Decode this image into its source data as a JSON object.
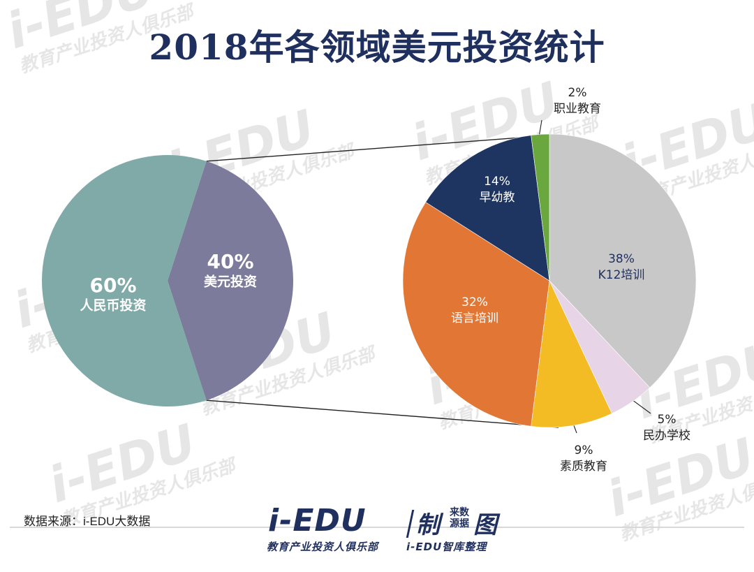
{
  "watermark": {
    "brand": "i-EDU",
    "tagline": "教育产业投资人俱乐部"
  },
  "colors": {
    "title": "#1f2f5e",
    "label_dark": "#1f2f5e",
    "label_light": "#ffffff",
    "connector": "#222222"
  },
  "chart_data": [
    {
      "type": "pie",
      "title": "2018年各领域美元投资统计",
      "name": "investment-currency-split",
      "slices": [
        {
          "label": "人民币投资",
          "pct": "60%",
          "value": 60,
          "color": "#7faaa7"
        },
        {
          "label": "美元投资",
          "pct": "40%",
          "value": 40,
          "color": "#7c7b9b"
        }
      ]
    },
    {
      "type": "pie",
      "name": "usd-investment-by-sector",
      "slices": [
        {
          "label": "K12培训",
          "pct": "38%",
          "value": 38,
          "color": "#c8c8c8"
        },
        {
          "label": "民办学校",
          "pct": "5%",
          "value": 5,
          "color": "#e7d4e6"
        },
        {
          "label": "素质教育",
          "pct": "9%",
          "value": 9,
          "color": "#f3bc25"
        },
        {
          "label": "语言培训",
          "pct": "32%",
          "value": 32,
          "color": "#e27735"
        },
        {
          "label": "早幼教",
          "pct": "14%",
          "value": 14,
          "color": "#1e3561"
        },
        {
          "label": "职业教育",
          "pct": "2%",
          "value": 2,
          "color": "#6aa83f"
        }
      ]
    }
  ],
  "footer": {
    "source": "数据来源：i-EDU大数据",
    "logo_main": "i-EDU",
    "logo_zhi": "制",
    "logo_src_top": "来数",
    "logo_src_bottom": "源据",
    "logo_tu": "图",
    "logo_sub1": "教育产业投资人俱乐部",
    "logo_sub2": "i-EDU智库整理"
  }
}
